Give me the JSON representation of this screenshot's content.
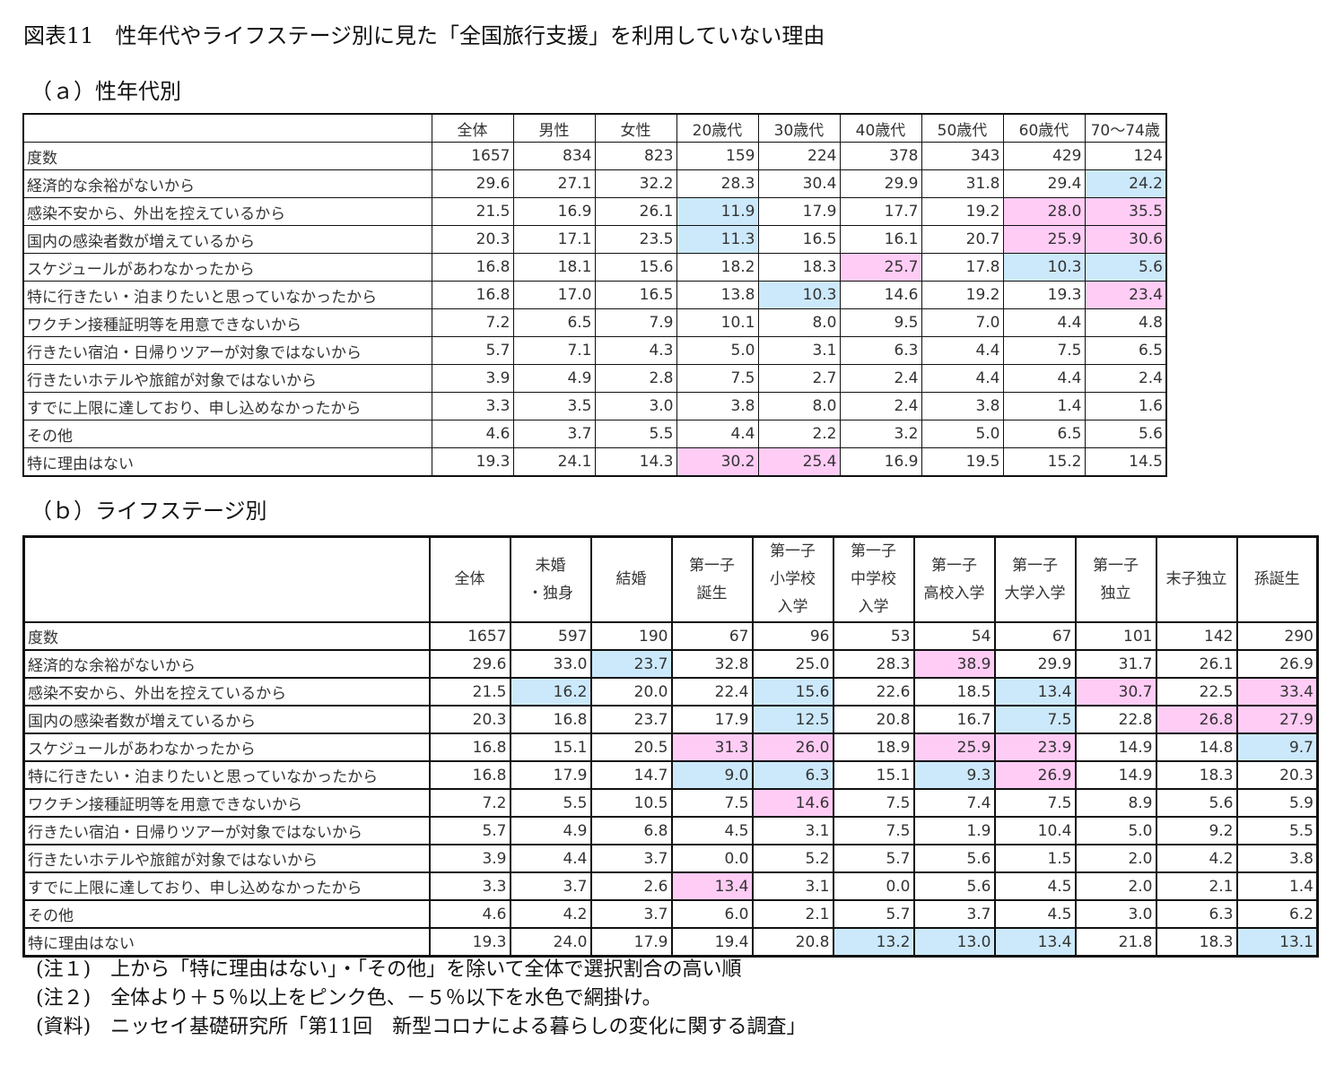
{
  "title": "図表11　性年代やライフステージ別に見た「全国旅行支援」を利用していない理由",
  "highlight_colors": {
    "pink": "#ffccf5",
    "blue": "#cce9fb"
  },
  "table_a": {
    "subtitle": "（ａ）性年代別",
    "columns": [
      "全体",
      "男性",
      "女性",
      "20歳代",
      "30歳代",
      "40歳代",
      "50歳代",
      "60歳代",
      "70～74歳"
    ],
    "rows": [
      {
        "label": "度数",
        "values": [
          "1657",
          "834",
          "823",
          "159",
          "224",
          "378",
          "343",
          "429",
          "124"
        ],
        "hl": [
          "",
          "",
          "",
          "",
          "",
          "",
          "",
          "",
          ""
        ]
      },
      {
        "label": "経済的な余裕がないから",
        "values": [
          "29.6",
          "27.1",
          "32.2",
          "28.3",
          "30.4",
          "29.9",
          "31.8",
          "29.4",
          "24.2"
        ],
        "hl": [
          "",
          "",
          "",
          "",
          "",
          "",
          "",
          "",
          "blue"
        ]
      },
      {
        "label": "感染不安から、外出を控えているから",
        "values": [
          "21.5",
          "16.9",
          "26.1",
          "11.9",
          "17.9",
          "17.7",
          "19.2",
          "28.0",
          "35.5"
        ],
        "hl": [
          "",
          "",
          "",
          "blue",
          "",
          "",
          "",
          "pink",
          "pink"
        ]
      },
      {
        "label": "国内の感染者数が増えているから",
        "values": [
          "20.3",
          "17.1",
          "23.5",
          "11.3",
          "16.5",
          "16.1",
          "20.7",
          "25.9",
          "30.6"
        ],
        "hl": [
          "",
          "",
          "",
          "blue",
          "",
          "",
          "",
          "pink",
          "pink"
        ]
      },
      {
        "label": "スケジュールがあわなかったから",
        "values": [
          "16.8",
          "18.1",
          "15.6",
          "18.2",
          "18.3",
          "25.7",
          "17.8",
          "10.3",
          "5.6"
        ],
        "hl": [
          "",
          "",
          "",
          "",
          "",
          "pink",
          "",
          "blue",
          "blue"
        ]
      },
      {
        "label": "特に行きたい・泊まりたいと思っていなかったから",
        "values": [
          "16.8",
          "17.0",
          "16.5",
          "13.8",
          "10.3",
          "14.6",
          "19.2",
          "19.3",
          "23.4"
        ],
        "hl": [
          "",
          "",
          "",
          "",
          "blue",
          "",
          "",
          "",
          "pink"
        ]
      },
      {
        "label": "ワクチン接種証明等を用意できないから",
        "values": [
          "7.2",
          "6.5",
          "7.9",
          "10.1",
          "8.0",
          "9.5",
          "7.0",
          "4.4",
          "4.8"
        ],
        "hl": [
          "",
          "",
          "",
          "",
          "",
          "",
          "",
          "",
          ""
        ]
      },
      {
        "label": "行きたい宿泊・日帰りツアーが対象ではないから",
        "values": [
          "5.7",
          "7.1",
          "4.3",
          "5.0",
          "3.1",
          "6.3",
          "4.4",
          "7.5",
          "6.5"
        ],
        "hl": [
          "",
          "",
          "",
          "",
          "",
          "",
          "",
          "",
          ""
        ]
      },
      {
        "label": "行きたいホテルや旅館が対象ではないから",
        "values": [
          "3.9",
          "4.9",
          "2.8",
          "7.5",
          "2.7",
          "2.4",
          "4.4",
          "4.4",
          "2.4"
        ],
        "hl": [
          "",
          "",
          "",
          "",
          "",
          "",
          "",
          "",
          ""
        ]
      },
      {
        "label": "すでに上限に達しており、申し込めなかったから",
        "values": [
          "3.3",
          "3.5",
          "3.0",
          "3.8",
          "8.0",
          "2.4",
          "3.8",
          "1.4",
          "1.6"
        ],
        "hl": [
          "",
          "",
          "",
          "",
          "",
          "",
          "",
          "",
          ""
        ]
      },
      {
        "label": "その他",
        "values": [
          "4.6",
          "3.7",
          "5.5",
          "4.4",
          "2.2",
          "3.2",
          "5.0",
          "6.5",
          "5.6"
        ],
        "hl": [
          "",
          "",
          "",
          "",
          "",
          "",
          "",
          "",
          ""
        ]
      },
      {
        "label": "特に理由はない",
        "values": [
          "19.3",
          "24.1",
          "14.3",
          "30.2",
          "25.4",
          "16.9",
          "19.5",
          "15.2",
          "14.5"
        ],
        "hl": [
          "",
          "",
          "",
          "pink",
          "pink",
          "",
          "",
          "",
          ""
        ]
      }
    ]
  },
  "table_b": {
    "subtitle": "（ｂ）ライフステージ別",
    "columns": [
      "全体",
      "未婚\n・独身",
      "結婚",
      "第一子\n誕生",
      "第一子\n小学校\n入学",
      "第一子\n中学校\n入学",
      "第一子\n高校入学",
      "第一子\n大学入学",
      "第一子\n独立",
      "末子独立",
      "孫誕生"
    ],
    "rows": [
      {
        "label": "度数",
        "values": [
          "1657",
          "597",
          "190",
          "67",
          "96",
          "53",
          "54",
          "67",
          "101",
          "142",
          "290"
        ],
        "hl": [
          "",
          "",
          "",
          "",
          "",
          "",
          "",
          "",
          "",
          "",
          ""
        ]
      },
      {
        "label": "経済的な余裕がないから",
        "values": [
          "29.6",
          "33.0",
          "23.7",
          "32.8",
          "25.0",
          "28.3",
          "38.9",
          "29.9",
          "31.7",
          "26.1",
          "26.9"
        ],
        "hl": [
          "",
          "",
          "blue",
          "",
          "",
          "",
          "pink",
          "",
          "",
          "",
          ""
        ]
      },
      {
        "label": "感染不安から、外出を控えているから",
        "values": [
          "21.5",
          "16.2",
          "20.0",
          "22.4",
          "15.6",
          "22.6",
          "18.5",
          "13.4",
          "30.7",
          "22.5",
          "33.4"
        ],
        "hl": [
          "",
          "blue",
          "",
          "",
          "blue",
          "",
          "",
          "blue",
          "pink",
          "",
          "pink"
        ]
      },
      {
        "label": "国内の感染者数が増えているから",
        "values": [
          "20.3",
          "16.8",
          "23.7",
          "17.9",
          "12.5",
          "20.8",
          "16.7",
          "7.5",
          "22.8",
          "26.8",
          "27.9"
        ],
        "hl": [
          "",
          "",
          "",
          "",
          "blue",
          "",
          "",
          "blue",
          "",
          "pink",
          "pink"
        ]
      },
      {
        "label": "スケジュールがあわなかったから",
        "values": [
          "16.8",
          "15.1",
          "20.5",
          "31.3",
          "26.0",
          "18.9",
          "25.9",
          "23.9",
          "14.9",
          "14.8",
          "9.7"
        ],
        "hl": [
          "",
          "",
          "",
          "pink",
          "pink",
          "",
          "pink",
          "pink",
          "",
          "",
          "blue"
        ]
      },
      {
        "label": "特に行きたい・泊まりたいと思っていなかったから",
        "values": [
          "16.8",
          "17.9",
          "14.7",
          "9.0",
          "6.3",
          "15.1",
          "9.3",
          "26.9",
          "14.9",
          "18.3",
          "20.3"
        ],
        "hl": [
          "",
          "",
          "",
          "blue",
          "blue",
          "",
          "blue",
          "pink",
          "",
          "",
          ""
        ]
      },
      {
        "label": "ワクチン接種証明等を用意できないから",
        "values": [
          "7.2",
          "5.5",
          "10.5",
          "7.5",
          "14.6",
          "7.5",
          "7.4",
          "7.5",
          "8.9",
          "5.6",
          "5.9"
        ],
        "hl": [
          "",
          "",
          "",
          "",
          "pink",
          "",
          "",
          "",
          "",
          "",
          ""
        ]
      },
      {
        "label": "行きたい宿泊・日帰りツアーが対象ではないから",
        "values": [
          "5.7",
          "4.9",
          "6.8",
          "4.5",
          "3.1",
          "7.5",
          "1.9",
          "10.4",
          "5.0",
          "9.2",
          "5.5"
        ],
        "hl": [
          "",
          "",
          "",
          "",
          "",
          "",
          "",
          "",
          "",
          "",
          ""
        ]
      },
      {
        "label": "行きたいホテルや旅館が対象ではないから",
        "values": [
          "3.9",
          "4.4",
          "3.7",
          "0.0",
          "5.2",
          "5.7",
          "5.6",
          "1.5",
          "2.0",
          "4.2",
          "3.8"
        ],
        "hl": [
          "",
          "",
          "",
          "",
          "",
          "",
          "",
          "",
          "",
          "",
          ""
        ]
      },
      {
        "label": "すでに上限に達しており、申し込めなかったから",
        "values": [
          "3.3",
          "3.7",
          "2.6",
          "13.4",
          "3.1",
          "0.0",
          "5.6",
          "4.5",
          "2.0",
          "2.1",
          "1.4"
        ],
        "hl": [
          "",
          "",
          "",
          "pink",
          "",
          "",
          "",
          "",
          "",
          "",
          ""
        ]
      },
      {
        "label": "その他",
        "values": [
          "4.6",
          "4.2",
          "3.7",
          "6.0",
          "2.1",
          "5.7",
          "3.7",
          "4.5",
          "3.0",
          "6.3",
          "6.2"
        ],
        "hl": [
          "",
          "",
          "",
          "",
          "",
          "",
          "",
          "",
          "",
          "",
          ""
        ]
      },
      {
        "label": "特に理由はない",
        "values": [
          "19.3",
          "24.0",
          "17.9",
          "19.4",
          "20.8",
          "13.2",
          "13.0",
          "13.4",
          "21.8",
          "18.3",
          "13.1"
        ],
        "hl": [
          "",
          "",
          "",
          "",
          "",
          "blue",
          "blue",
          "blue",
          "",
          "",
          "blue"
        ]
      }
    ]
  },
  "notes": [
    "(注１)　上から「特に理由はない」・「その他」を除いて全体で選択割合の高い順",
    "(注２)　全体より＋５％以上をピンク色、－５％以下を水色で網掛け。",
    "(資料)　ニッセイ基礎研究所「第11回　新型コロナによる暮らしの変化に関する調査」"
  ]
}
